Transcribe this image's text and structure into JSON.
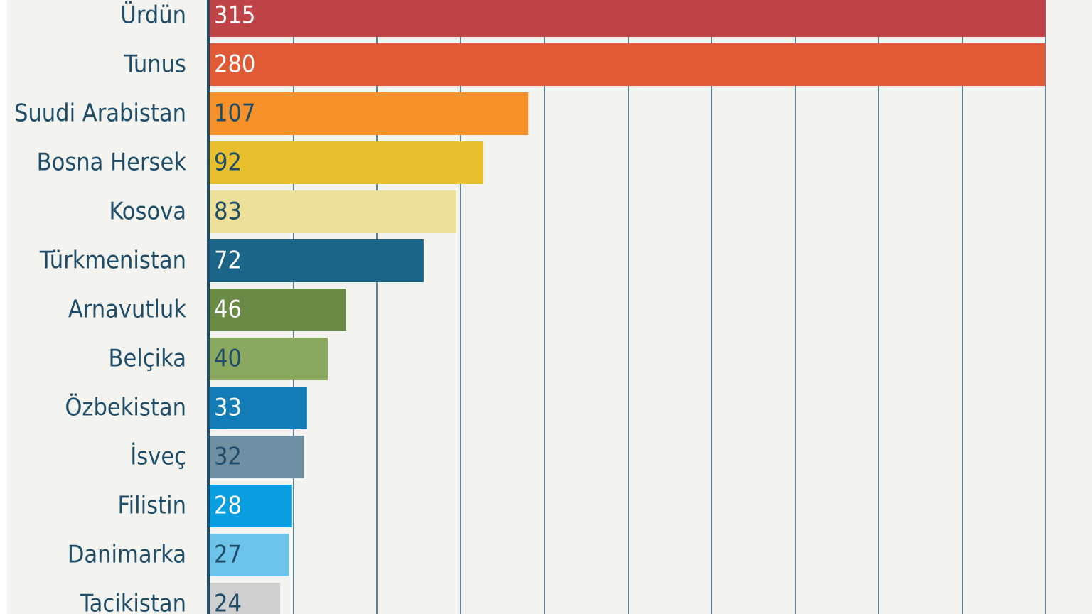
{
  "chart_data": {
    "type": "bar",
    "orientation": "horizontal",
    "categories": [
      "Ürdün",
      "Tunus",
      "Suudi Arabistan",
      "Bosna Hersek",
      "Kosova",
      "Türkmenistan",
      "Arnavutluk",
      "Belçika",
      "Özbekistan",
      "İsveç",
      "Filistin",
      "Danimarka",
      "Tacikistan"
    ],
    "values": [
      315,
      280,
      107,
      92,
      83,
      72,
      46,
      40,
      33,
      32,
      28,
      27,
      24
    ],
    "value_labels": [
      "315",
      "280",
      "107",
      "92",
      "83",
      "72",
      "46",
      "40",
      "33",
      "32",
      "28",
      "27",
      "24"
    ],
    "bar_colors": [
      "#bf4346",
      "#e05a36",
      "#f7922a",
      "#e8c02e",
      "#ede09a",
      "#1b6589",
      "#6a8a45",
      "#8aa85f",
      "#127cb6",
      "#6f8fa3",
      "#089ee0",
      "#6cc4ea",
      "#cfcfcf"
    ],
    "value_label_colors": [
      "#ffffff",
      "#ffffff",
      "#1f4d68",
      "#1f4d68",
      "#1f4d68",
      "#ffffff",
      "#ffffff",
      "#1f4d68",
      "#ffffff",
      "#1f4d68",
      "#ffffff",
      "#1f4d68",
      "#1f4d68"
    ],
    "category_label_color": "#1f4d68",
    "grid_color": "#1f4d68",
    "grid": true,
    "title": "",
    "xlabel": "",
    "ylabel": ""
  }
}
